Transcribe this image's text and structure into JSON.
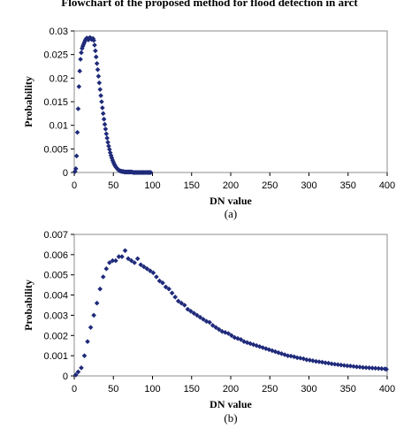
{
  "caption_fragment": "Flowchart of the proposed method for flood detection in arct",
  "colors": {
    "marker": "#1f2a7a",
    "axis": "#000000",
    "frame": "#8c8c8c"
  },
  "chart_data": [
    {
      "type": "scatter",
      "panel_label": "(a)",
      "xlabel": "DN value",
      "ylabel": "Probability",
      "xlim": [
        0,
        400
      ],
      "ylim": [
        0,
        0.03
      ],
      "xticks": [
        "0",
        "50",
        "100",
        "150",
        "200",
        "250",
        "300",
        "350",
        "400"
      ],
      "yticks": [
        "0",
        "0.005",
        "0.01",
        "0.015",
        "0.02",
        "0.025",
        "0.03"
      ],
      "grid": false,
      "marker": "diamond",
      "x": [
        1,
        2,
        3,
        4,
        5,
        6,
        7,
        8,
        9,
        10,
        11,
        12,
        13,
        14,
        15,
        16,
        17,
        18,
        19,
        20,
        21,
        22,
        23,
        24,
        25,
        26,
        27,
        28,
        29,
        30,
        31,
        32,
        33,
        34,
        35,
        36,
        37,
        38,
        39,
        40,
        41,
        42,
        43,
        44,
        45,
        46,
        47,
        48,
        49,
        50,
        51,
        52,
        53,
        54,
        55,
        56,
        57,
        58,
        59,
        60,
        61,
        62,
        63,
        64,
        65,
        66,
        67,
        68,
        69,
        70,
        71,
        72,
        73,
        74,
        75,
        76,
        77,
        78,
        79,
        80,
        81,
        82,
        83,
        84,
        85,
        86,
        87,
        88,
        89,
        90,
        91,
        92,
        93,
        94,
        95,
        96,
        97,
        98
      ],
      "y": [
        0.0002,
        0.0008,
        0.0035,
        0.0085,
        0.0135,
        0.0182,
        0.0215,
        0.024,
        0.0254,
        0.0263,
        0.0268,
        0.0272,
        0.0276,
        0.028,
        0.0283,
        0.0285,
        0.0284,
        0.0281,
        0.0283,
        0.0286,
        0.0285,
        0.0282,
        0.0283,
        0.0284,
        0.028,
        0.027,
        0.0258,
        0.0245,
        0.0231,
        0.0218,
        0.0204,
        0.019,
        0.0176,
        0.0163,
        0.015,
        0.0137,
        0.0125,
        0.0113,
        0.0102,
        0.0092,
        0.0082,
        0.0073,
        0.0064,
        0.0056,
        0.0049,
        0.0042,
        0.0036,
        0.0031,
        0.0026,
        0.0022,
        0.0018,
        0.0015,
        0.0012,
        0.001,
        0.0008,
        0.0006,
        0.0005,
        0.0004,
        0.0003,
        0.0003,
        0.0002,
        0.0002,
        0.0002,
        0.0001,
        0.0001,
        0.0001,
        0.0001,
        0.0001,
        0.0001,
        0.0001,
        0.0001,
        0.0001,
        0.0001,
        0.0001,
        0.0,
        0.0,
        0.0,
        0.0,
        0.0,
        0.0,
        0.0,
        0.0,
        0.0,
        0.0,
        0.0,
        0.0,
        0.0,
        0.0,
        0.0,
        0.0,
        0.0,
        0.0,
        0.0,
        0.0,
        0.0,
        0.0,
        0.0,
        0.0
      ]
    },
    {
      "type": "scatter",
      "panel_label": "(b)",
      "xlabel": "DN value",
      "ylabel": "Probability",
      "xlim": [
        0,
        400
      ],
      "ylim": [
        0,
        0.007
      ],
      "xticks": [
        "0",
        "50",
        "100",
        "150",
        "200",
        "250",
        "300",
        "350",
        "400"
      ],
      "yticks": [
        "0",
        "0.001",
        "0.002",
        "0.003",
        "0.004",
        "0.005",
        "0.006",
        "0.007"
      ],
      "grid": false,
      "marker": "diamond",
      "x": [
        2,
        5,
        9,
        13,
        17,
        21,
        25,
        29,
        33,
        37,
        41,
        45,
        49,
        53,
        57,
        61,
        65,
        69,
        73,
        77,
        81,
        85,
        89,
        93,
        97,
        101,
        105,
        109,
        113,
        117,
        121,
        125,
        129,
        133,
        137,
        141,
        145,
        149,
        153,
        157,
        161,
        165,
        169,
        173,
        177,
        181,
        185,
        189,
        193,
        197,
        201,
        205,
        209,
        213,
        217,
        221,
        225,
        229,
        233,
        237,
        241,
        245,
        249,
        253,
        257,
        261,
        265,
        269,
        273,
        277,
        281,
        285,
        289,
        293,
        297,
        301,
        305,
        309,
        313,
        317,
        321,
        325,
        329,
        333,
        337,
        341,
        345,
        349,
        353,
        357,
        361,
        365,
        369,
        373,
        377,
        381,
        385,
        389,
        393,
        397,
        399
      ],
      "y": [
        5e-05,
        0.0002,
        0.0004,
        0.001,
        0.0017,
        0.0024,
        0.003,
        0.0036,
        0.0043,
        0.0049,
        0.0053,
        0.0056,
        0.0057,
        0.0057,
        0.0059,
        0.0059,
        0.0062,
        0.0058,
        0.0057,
        0.0056,
        0.0058,
        0.0055,
        0.0054,
        0.0053,
        0.0052,
        0.0051,
        0.0049,
        0.0047,
        0.0046,
        0.0044,
        0.0043,
        0.0041,
        0.0039,
        0.0037,
        0.0036,
        0.0035,
        0.0033,
        0.0032,
        0.0031,
        0.003,
        0.0029,
        0.0028,
        0.0027,
        0.00265,
        0.0025,
        0.0024,
        0.0023,
        0.0022,
        0.00215,
        0.0021,
        0.002,
        0.0019,
        0.00185,
        0.0018,
        0.0017,
        0.00165,
        0.0016,
        0.00155,
        0.0015,
        0.00145,
        0.0014,
        0.00135,
        0.0013,
        0.00125,
        0.0012,
        0.00115,
        0.0011,
        0.00105,
        0.001,
        0.00098,
        0.00095,
        0.0009,
        0.00088,
        0.00085,
        0.0008,
        0.00078,
        0.00075,
        0.00072,
        0.0007,
        0.00068,
        0.00065,
        0.00063,
        0.0006,
        0.00058,
        0.00056,
        0.00054,
        0.00052,
        0.0005,
        0.00049,
        0.00047,
        0.00045,
        0.00044,
        0.00042,
        0.00041,
        0.0004,
        0.00039,
        0.00038,
        0.00037,
        0.00036,
        0.00035,
        0.00033
      ]
    }
  ]
}
